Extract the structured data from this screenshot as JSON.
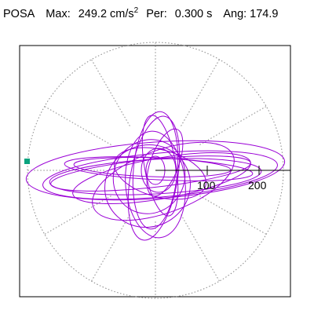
{
  "header": {
    "station": "POSA",
    "max_label": "Max:",
    "max_value": "249.2",
    "max_unit": "cm/s",
    "max_unit_exp": "2",
    "per_label": "Per:",
    "per_value": "0.300",
    "per_unit": "s",
    "ang_label": "Ang:",
    "ang_value": "174.9"
  },
  "chart_data": {
    "type": "scatter",
    "title": "POSA  Max: 249.2 cm/s2  Per: 0.300 s  Ang: 174.9",
    "xlabel": "",
    "ylabel": "",
    "radial_tick_labels": [
      "100",
      "200"
    ],
    "radial_ticks": [
      100,
      200
    ],
    "max_radius": 249.2,
    "peak_angle_deg": 174.9,
    "trace_color": "#9a00d6",
    "marker_color": "#0aa37e",
    "grid": "dotted polar"
  }
}
